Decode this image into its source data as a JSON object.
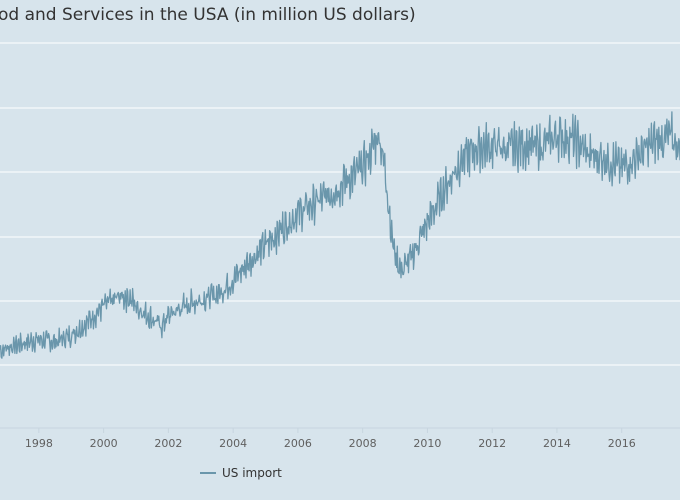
{
  "chart_data": {
    "type": "line",
    "title": "od and Services in the USA (in million US dollars)",
    "xlabel": "",
    "ylabel": "",
    "xlim": [
      1996.8,
      2017.8
    ],
    "x_ticks": [
      "1998",
      "2000",
      "2002",
      "2004",
      "2006",
      "2008",
      "2010",
      "2012",
      "2014",
      "2016"
    ],
    "grid": true,
    "legend_position": "bottom-left",
    "series": [
      {
        "name": "US import",
        "color": "#6a96ab",
        "x": [
          1996.8,
          1997.0,
          1997.5,
          1998.0,
          1998.5,
          1999.0,
          1999.5,
          2000.0,
          2000.5,
          2000.8,
          2001.0,
          2001.5,
          2001.8,
          2002.0,
          2002.5,
          2003.0,
          2003.5,
          2004.0,
          2004.5,
          2005.0,
          2005.5,
          2006.0,
          2006.5,
          2007.0,
          2007.5,
          2008.0,
          2008.3,
          2008.5,
          2008.7,
          2008.9,
          2009.0,
          2009.2,
          2009.5,
          2010.0,
          2010.5,
          2011.0,
          2011.5,
          2012.0,
          2012.5,
          2013.0,
          2013.5,
          2014.0,
          2014.5,
          2015.0,
          2015.5,
          2016.0,
          2016.5,
          2017.0,
          2017.5,
          2017.8
        ],
        "y": [
          12.0,
          12.5,
          13.2,
          13.8,
          13.4,
          14.5,
          16.5,
          19.0,
          20.5,
          20.3,
          19.0,
          17.0,
          15.8,
          17.5,
          19.0,
          20.0,
          20.8,
          23.0,
          26.0,
          28.5,
          31.0,
          33.5,
          35.0,
          36.5,
          38.5,
          40.5,
          43.5,
          46.0,
          40.0,
          30.0,
          27.0,
          24.5,
          26.5,
          32.0,
          37.0,
          41.5,
          43.5,
          44.0,
          43.5,
          44.2,
          43.8,
          45.5,
          45.0,
          42.5,
          42.0,
          40.5,
          42.5,
          44.5,
          45.5,
          43.5
        ]
      }
    ]
  },
  "legend": {
    "label": "US import"
  }
}
